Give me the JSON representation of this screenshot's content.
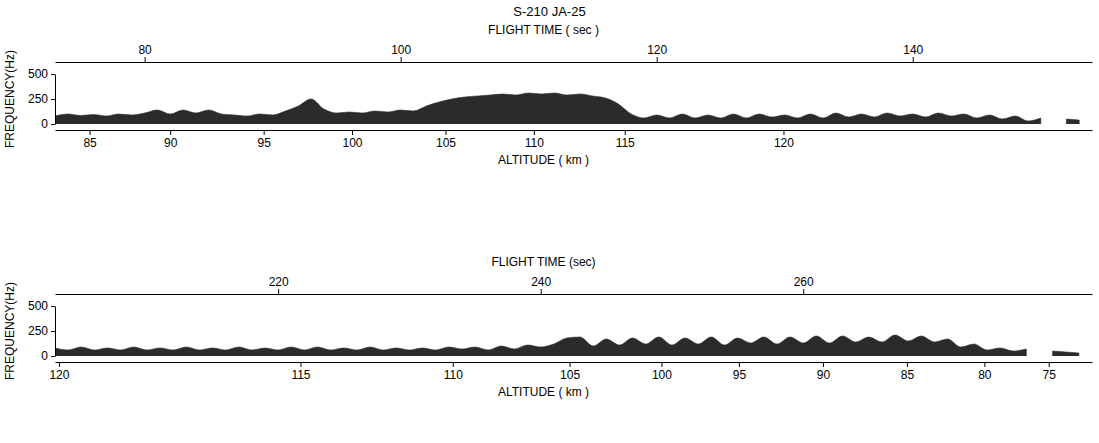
{
  "title": "S-210 JA-25",
  "chart_data": [
    {
      "type": "area",
      "color": "#2b2b2b",
      "x_label": "FLIGHT TIME ( sec )",
      "x2_label": "ALTITUDE ( km )",
      "y_label": "FREQUENCY(Hz)",
      "xlim": [
        73,
        154
      ],
      "xticks": [
        80,
        100,
        120,
        140
      ],
      "x2ticks": [
        {
          "value": 75.7,
          "label": "85"
        },
        {
          "value": 82.0,
          "label": "90"
        },
        {
          "value": 89.3,
          "label": "95"
        },
        {
          "value": 96.2,
          "label": "100"
        },
        {
          "value": 103.5,
          "label": "105"
        },
        {
          "value": 110.4,
          "label": "110"
        },
        {
          "value": 117.5,
          "label": "115"
        },
        {
          "value": 129.9,
          "label": "120"
        }
      ],
      "ylim": [
        0,
        500
      ],
      "yticks": [
        0,
        250,
        500
      ],
      "x": [
        73,
        74,
        75,
        76,
        77,
        78,
        79,
        80,
        81,
        82,
        83,
        84,
        85,
        86,
        87,
        88,
        89,
        90,
        91,
        92,
        93,
        94,
        95,
        96,
        97,
        98,
        99,
        100,
        101,
        102,
        103,
        104,
        105,
        106,
        107,
        108,
        109,
        110,
        111,
        112,
        113,
        114,
        115,
        116,
        117,
        118,
        119,
        120,
        121,
        122,
        123,
        124,
        125,
        126,
        127,
        128,
        129,
        130,
        131,
        132,
        133,
        134,
        135,
        136,
        137,
        138,
        139,
        140,
        141,
        142,
        143,
        144,
        145,
        146,
        147,
        148,
        149,
        150,
        151,
        152,
        153
      ],
      "values": [
        80,
        100,
        85,
        95,
        80,
        100,
        90,
        110,
        140,
        100,
        140,
        110,
        140,
        100,
        90,
        80,
        100,
        90,
        130,
        180,
        250,
        150,
        110,
        120,
        110,
        130,
        120,
        140,
        130,
        180,
        220,
        250,
        270,
        280,
        290,
        300,
        290,
        310,
        300,
        310,
        290,
        300,
        280,
        260,
        200,
        100,
        60,
        90,
        60,
        100,
        60,
        90,
        60,
        100,
        60,
        100,
        70,
        90,
        60,
        100,
        60,
        110,
        70,
        100,
        70,
        110,
        80,
        100,
        70,
        110,
        80,
        100,
        60,
        90,
        50,
        80,
        30,
        60,
        null,
        50,
        40
      ]
    },
    {
      "type": "area",
      "color": "#2b2b2b",
      "x_label": "FLIGHT TIME (sec)",
      "x2_label": "ALTITUDE ( km )",
      "y_label": "FREQUENCY(Hz)",
      "xlim": [
        203,
        282
      ],
      "xticks": [
        220,
        240,
        260
      ],
      "x2ticks": [
        {
          "value": 203.3,
          "label": "120"
        },
        {
          "value": 221.7,
          "label": "115"
        },
        {
          "value": 233.3,
          "label": "110"
        },
        {
          "value": 242.2,
          "label": "105"
        },
        {
          "value": 249.2,
          "label": "100"
        },
        {
          "value": 255.1,
          "label": "95"
        },
        {
          "value": 261.5,
          "label": "90"
        },
        {
          "value": 267.9,
          "label": "85"
        },
        {
          "value": 273.8,
          "label": "80"
        },
        {
          "value": 278.7,
          "label": "75"
        }
      ],
      "ylim": [
        0,
        500
      ],
      "yticks": [
        0,
        250,
        500
      ],
      "x": [
        203,
        204,
        205,
        206,
        207,
        208,
        209,
        210,
        211,
        212,
        213,
        214,
        215,
        216,
        217,
        218,
        219,
        220,
        221,
        222,
        223,
        224,
        225,
        226,
        227,
        228,
        229,
        230,
        231,
        232,
        233,
        234,
        235,
        236,
        237,
        238,
        239,
        240,
        241,
        242,
        243,
        244,
        245,
        246,
        247,
        248,
        249,
        250,
        251,
        252,
        253,
        254,
        255,
        256,
        257,
        258,
        259,
        260,
        261,
        262,
        263,
        264,
        265,
        266,
        267,
        268,
        269,
        270,
        271,
        272,
        273,
        274,
        275,
        276,
        277,
        278,
        279,
        280,
        281
      ],
      "values": [
        80,
        60,
        90,
        60,
        80,
        60,
        90,
        60,
        80,
        60,
        90,
        60,
        80,
        60,
        90,
        60,
        80,
        60,
        90,
        60,
        90,
        60,
        80,
        60,
        90,
        60,
        80,
        60,
        80,
        60,
        90,
        70,
        90,
        60,
        100,
        70,
        110,
        90,
        120,
        180,
        190,
        100,
        170,
        110,
        180,
        120,
        190,
        110,
        180,
        120,
        190,
        110,
        180,
        130,
        190,
        120,
        190,
        130,
        200,
        130,
        200,
        140,
        190,
        140,
        210,
        150,
        200,
        140,
        170,
        90,
        120,
        60,
        80,
        50,
        70,
        null,
        50,
        40,
        30
      ]
    }
  ]
}
